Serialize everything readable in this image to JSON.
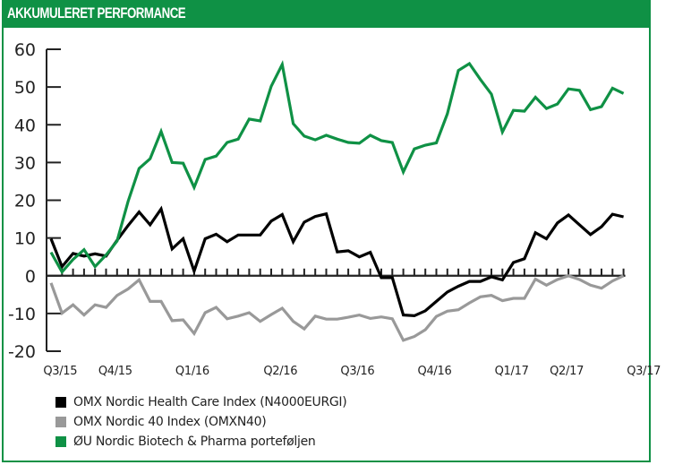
{
  "header": {
    "title": "AKKUMULERET PERFORMANCE"
  },
  "colors": {
    "frame": "#0f9145",
    "healthcare": "#000000",
    "omx40": "#999999",
    "portfolio": "#0f9145"
  },
  "chart_data": {
    "type": "line",
    "title": "AKKUMULERET PERFORMANCE",
    "xlabel": "",
    "ylabel": "",
    "ylim": [
      -20,
      60
    ],
    "yticks": [
      60,
      50,
      40,
      30,
      20,
      10,
      0,
      -10,
      -20
    ],
    "ytick_labels": [
      "60",
      "50",
      "40",
      "30",
      "20",
      "10",
      "0",
      "-10",
      "-20"
    ],
    "grid": false,
    "legend_position": "bottom-left",
    "n_points": 53,
    "x_tick_labels": [
      {
        "label": "Q3/15",
        "index": 1
      },
      {
        "label": "Q4/15",
        "index": 6
      },
      {
        "label": "Q1/16",
        "index": 13
      },
      {
        "label": "Q2/16",
        "index": 21
      },
      {
        "label": "Q3/16",
        "index": 28
      },
      {
        "label": "Q4/16",
        "index": 35
      },
      {
        "label": "Q1/17",
        "index": 42
      },
      {
        "label": "Q2/17",
        "index": 47
      },
      {
        "label": "Q3/17",
        "index": 54
      }
    ],
    "series": [
      {
        "name": "OMX Nordic Health Care Index (N4000EURGI)",
        "color": "#000000",
        "values": [
          9.8,
          2.4,
          5.9,
          5.2,
          5.8,
          5.2,
          9.4,
          13.3,
          16.9,
          13.5,
          17.7,
          7.1,
          9.8,
          1.2,
          9.8,
          11.0,
          9.0,
          10.8,
          10.8,
          10.8,
          14.5,
          16.2,
          9.0,
          14.2,
          15.7,
          16.4,
          6.3,
          6.6,
          5.0,
          6.2,
          -0.5,
          -0.5,
          -10.4,
          -10.6,
          -9.3,
          -6.8,
          -4.3,
          -2.8,
          -1.5,
          -1.5,
          -0.3,
          -1.1,
          3.5,
          4.5,
          11.4,
          9.8,
          14.0,
          16.1,
          13.5,
          10.9,
          13.0,
          16.3,
          15.6
        ]
      },
      {
        "name": "OMX Nordic 40 Index (OMXN40)",
        "color": "#999999",
        "values": [
          -1.9,
          -9.9,
          -7.7,
          -10.4,
          -7.7,
          -8.4,
          -5.2,
          -3.5,
          -1.1,
          -6.8,
          -6.8,
          -11.9,
          -11.7,
          -15.3,
          -9.8,
          -8.4,
          -11.4,
          -10.7,
          -9.8,
          -12.1,
          -10.3,
          -8.6,
          -12.1,
          -14.1,
          -10.7,
          -11.5,
          -11.5,
          -11.0,
          -10.4,
          -11.3,
          -10.9,
          -11.4,
          -17.1,
          -16.1,
          -14.3,
          -10.8,
          -9.4,
          -9.0,
          -7.2,
          -5.6,
          -5.2,
          -6.6,
          -6.0,
          -6.0,
          -0.9,
          -2.5,
          -1.0,
          0.0,
          -1.0,
          -2.5,
          -3.3,
          -1.4,
          0.0
        ]
      },
      {
        "name": "ØU Nordic Biotech & Pharma porteføljen",
        "color": "#0f9145",
        "values": [
          6.2,
          1.0,
          4.3,
          6.9,
          2.4,
          5.5,
          9.2,
          19.7,
          28.4,
          31.0,
          38.2,
          30.0,
          29.8,
          23.4,
          30.8,
          31.7,
          35.3,
          36.2,
          41.5,
          41.0,
          50.2,
          56.0,
          40.3,
          37.0,
          36.0,
          37.2,
          36.2,
          35.3,
          35.1,
          37.2,
          35.8,
          35.3,
          27.5,
          33.6,
          34.6,
          35.2,
          42.9,
          54.4,
          56.2,
          52.0,
          48.1,
          38.1,
          43.8,
          43.6,
          47.3,
          44.3,
          45.5,
          49.5,
          49.1,
          44.0,
          44.8,
          49.7,
          48.3
        ]
      }
    ]
  },
  "legend": {
    "items": [
      {
        "label": "OMX Nordic Health Care Index (N4000EURGI)",
        "color": "#000000"
      },
      {
        "label": "OMX Nordic 40 Index (OMXN40)",
        "color": "#999999"
      },
      {
        "label": "ØU Nordic Biotech & Pharma porteføljen",
        "color": "#0f9145"
      }
    ]
  }
}
